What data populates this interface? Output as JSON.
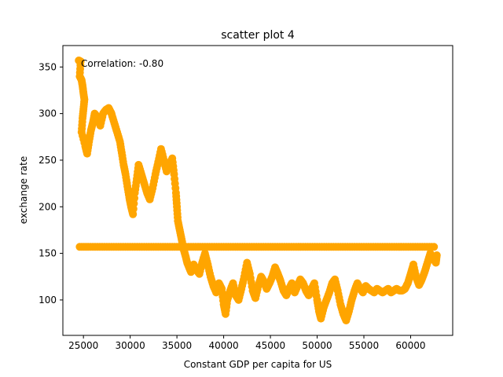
{
  "chart_data": {
    "type": "scatter",
    "title": "scatter plot 4",
    "xlabel": "Constant GDP per capita for US",
    "ylabel": "exchange rate",
    "annotation": "Correlation: -0.80",
    "xlim": [
      22800,
      64500
    ],
    "ylim": [
      62,
      373
    ],
    "xticks": [
      25000,
      30000,
      35000,
      40000,
      45000,
      50000,
      55000,
      60000
    ],
    "yticks": [
      100,
      150,
      200,
      250,
      300,
      350
    ],
    "grid": false,
    "marker_color": "#ffa500",
    "points": [
      [
        24500,
        357
      ],
      [
        24700,
        356
      ],
      [
        24600,
        340
      ],
      [
        24800,
        336
      ],
      [
        24900,
        330
      ],
      [
        25000,
        322
      ],
      [
        25100,
        315
      ],
      [
        25000,
        305
      ],
      [
        24900,
        295
      ],
      [
        24800,
        280
      ],
      [
        25200,
        265
      ],
      [
        25400,
        257
      ],
      [
        25600,
        270
      ],
      [
        25800,
        282
      ],
      [
        26000,
        290
      ],
      [
        26200,
        300
      ],
      [
        26500,
        296
      ],
      [
        26800,
        287
      ],
      [
        27100,
        300
      ],
      [
        27400,
        304
      ],
      [
        27700,
        306
      ],
      [
        28000,
        300
      ],
      [
        28300,
        290
      ],
      [
        28600,
        280
      ],
      [
        28900,
        270
      ],
      [
        29100,
        258
      ],
      [
        29300,
        245
      ],
      [
        29500,
        235
      ],
      [
        29700,
        222
      ],
      [
        29900,
        210
      ],
      [
        30100,
        200
      ],
      [
        30300,
        192
      ],
      [
        30500,
        215
      ],
      [
        30700,
        230
      ],
      [
        30900,
        245
      ],
      [
        31200,
        235
      ],
      [
        31500,
        225
      ],
      [
        31800,
        215
      ],
      [
        32100,
        208
      ],
      [
        32400,
        220
      ],
      [
        32700,
        235
      ],
      [
        33000,
        248
      ],
      [
        33300,
        262
      ],
      [
        33600,
        250
      ],
      [
        33900,
        238
      ],
      [
        34200,
        245
      ],
      [
        34500,
        252
      ],
      [
        34700,
        235
      ],
      [
        34900,
        215
      ],
      [
        35000,
        200
      ],
      [
        35100,
        185
      ],
      [
        35300,
        175
      ],
      [
        35500,
        165
      ],
      [
        35700,
        155
      ],
      [
        35900,
        148
      ],
      [
        36100,
        140
      ],
      [
        36300,
        135
      ],
      [
        36500,
        130
      ],
      [
        36800,
        138
      ],
      [
        37100,
        132
      ],
      [
        37400,
        128
      ],
      [
        37700,
        140
      ],
      [
        38000,
        150
      ],
      [
        38300,
        138
      ],
      [
        38600,
        125
      ],
      [
        38900,
        115
      ],
      [
        39200,
        108
      ],
      [
        39500,
        118
      ],
      [
        39800,
        112
      ],
      [
        40000,
        95
      ],
      [
        40200,
        85
      ],
      [
        40400,
        100
      ],
      [
        40700,
        110
      ],
      [
        41000,
        118
      ],
      [
        41300,
        105
      ],
      [
        41600,
        100
      ],
      [
        41900,
        112
      ],
      [
        42200,
        125
      ],
      [
        42500,
        140
      ],
      [
        42800,
        128
      ],
      [
        43100,
        110
      ],
      [
        43400,
        102
      ],
      [
        43700,
        115
      ],
      [
        44000,
        125
      ],
      [
        44300,
        120
      ],
      [
        44600,
        112
      ],
      [
        44900,
        118
      ],
      [
        45200,
        125
      ],
      [
        45500,
        135
      ],
      [
        45800,
        128
      ],
      [
        46100,
        120
      ],
      [
        46400,
        110
      ],
      [
        46700,
        105
      ],
      [
        47000,
        112
      ],
      [
        47300,
        118
      ],
      [
        47600,
        108
      ],
      [
        47900,
        115
      ],
      [
        48200,
        122
      ],
      [
        48500,
        118
      ],
      [
        48800,
        110
      ],
      [
        49100,
        105
      ],
      [
        49400,
        112
      ],
      [
        49700,
        118
      ],
      [
        50000,
        100
      ],
      [
        50200,
        88
      ],
      [
        50400,
        80
      ],
      [
        50700,
        92
      ],
      [
        51000,
        100
      ],
      [
        51300,
        108
      ],
      [
        51600,
        118
      ],
      [
        51900,
        122
      ],
      [
        52200,
        110
      ],
      [
        52500,
        95
      ],
      [
        52800,
        85
      ],
      [
        53100,
        78
      ],
      [
        53400,
        88
      ],
      [
        53700,
        100
      ],
      [
        54000,
        110
      ],
      [
        54300,
        118
      ],
      [
        54600,
        112
      ],
      [
        54900,
        108
      ],
      [
        55200,
        115
      ],
      [
        55500,
        112
      ],
      [
        55800,
        110
      ],
      [
        56100,
        108
      ],
      [
        56400,
        112
      ],
      [
        56700,
        110
      ],
      [
        57000,
        108
      ],
      [
        57300,
        110
      ],
      [
        57600,
        112
      ],
      [
        57900,
        108
      ],
      [
        58200,
        110
      ],
      [
        58500,
        112
      ],
      [
        58800,
        110
      ],
      [
        59100,
        110
      ],
      [
        59400,
        112
      ],
      [
        59700,
        118
      ],
      [
        60000,
        128
      ],
      [
        60300,
        138
      ],
      [
        60600,
        124
      ],
      [
        60900,
        116
      ],
      [
        61200,
        122
      ],
      [
        61500,
        130
      ],
      [
        61800,
        140
      ],
      [
        62100,
        150
      ],
      [
        62400,
        145
      ],
      [
        62700,
        140
      ],
      [
        62800,
        148
      ],
      [
        24600,
        157
      ],
      [
        25500,
        157
      ],
      [
        26500,
        157
      ],
      [
        27500,
        157
      ],
      [
        28500,
        157
      ],
      [
        29500,
        157
      ],
      [
        30500,
        157
      ],
      [
        31500,
        157
      ],
      [
        32500,
        157
      ],
      [
        33500,
        157
      ],
      [
        34500,
        157
      ],
      [
        35500,
        157
      ],
      [
        36500,
        157
      ],
      [
        37500,
        157
      ],
      [
        38500,
        157
      ],
      [
        39500,
        157
      ],
      [
        40500,
        157
      ],
      [
        41500,
        157
      ],
      [
        42500,
        157
      ],
      [
        43500,
        157
      ],
      [
        44500,
        157
      ],
      [
        45500,
        157
      ],
      [
        46500,
        157
      ],
      [
        47500,
        157
      ],
      [
        48500,
        157
      ],
      [
        49500,
        157
      ],
      [
        50500,
        157
      ],
      [
        51500,
        157
      ],
      [
        52500,
        157
      ],
      [
        53500,
        157
      ],
      [
        54500,
        157
      ],
      [
        55500,
        157
      ],
      [
        56500,
        157
      ],
      [
        57500,
        157
      ],
      [
        58500,
        157
      ],
      [
        59500,
        157
      ],
      [
        60500,
        157
      ],
      [
        61500,
        157
      ],
      [
        62500,
        157
      ]
    ]
  }
}
